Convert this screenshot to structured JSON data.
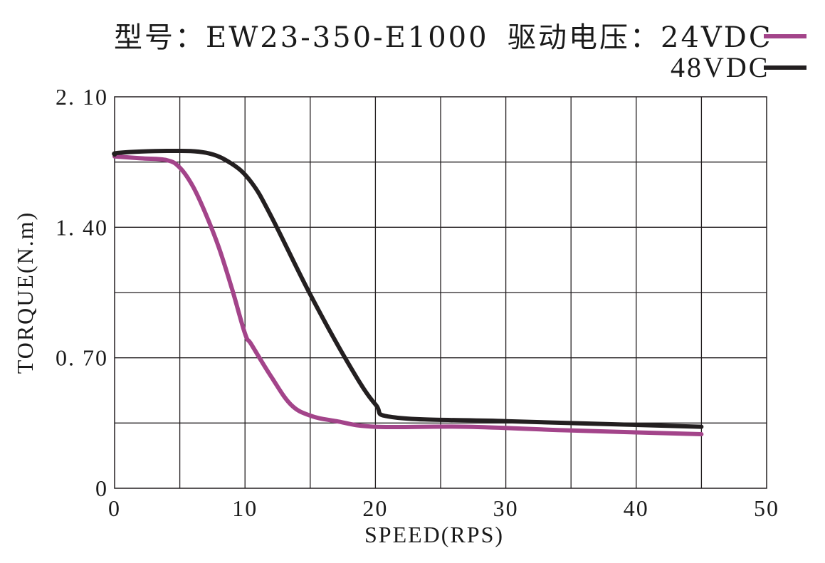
{
  "header": {
    "model_label": "型号：EW23-350-E1000",
    "voltage_label": "驱动电压：24VDC",
    "legend_second_label": "48VDC"
  },
  "colors": {
    "series_24vdc": "#a3448a",
    "series_48vdc": "#231f20",
    "grid": "#231f20"
  },
  "chart_data": {
    "type": "line",
    "xlabel": "SPEED(RPS)",
    "ylabel": "TORQUE(N.m)",
    "xlim": [
      0,
      50
    ],
    "ylim": [
      0,
      2.1
    ],
    "x_ticks": [
      0,
      10,
      20,
      30,
      40,
      50
    ],
    "x_tick_labels": [
      "0",
      "10",
      "20",
      "30",
      "40",
      "50"
    ],
    "y_ticks": [
      0,
      0.7,
      1.4,
      2.1
    ],
    "y_tick_labels": [
      "0",
      "0. 70",
      "1. 40",
      "2. 10"
    ],
    "grid": true,
    "legend_position": "top-right",
    "series": [
      {
        "name": "24VDC",
        "color": "#a3448a",
        "x": [
          0,
          2,
          4,
          5,
          6,
          7,
          8,
          9,
          10,
          10.5,
          12,
          13.5,
          15,
          17,
          20,
          27,
          35,
          45
        ],
        "y": [
          1.78,
          1.77,
          1.76,
          1.72,
          1.62,
          1.47,
          1.29,
          1.07,
          0.83,
          0.77,
          0.6,
          0.45,
          0.39,
          0.36,
          0.33,
          0.33,
          0.31,
          0.29
        ]
      },
      {
        "name": "48VDC",
        "color": "#231f20",
        "x": [
          0,
          0.4,
          4,
          7,
          9,
          10.5,
          12,
          15,
          18,
          20,
          21.5,
          30,
          40,
          45
        ],
        "y": [
          1.79,
          1.8,
          1.81,
          1.8,
          1.74,
          1.64,
          1.46,
          1.04,
          0.66,
          0.45,
          0.38,
          0.36,
          0.34,
          0.33
        ]
      }
    ]
  }
}
